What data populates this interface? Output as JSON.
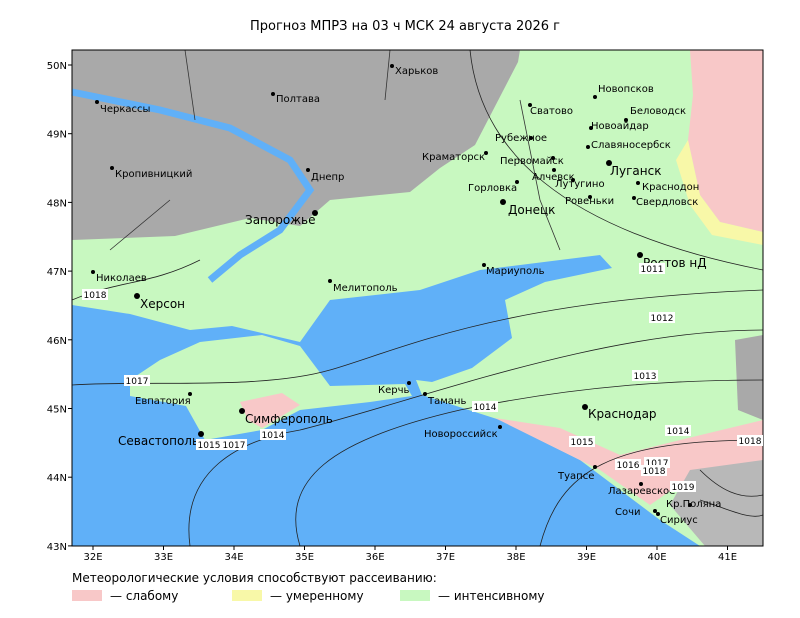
{
  "title": "Прогноз МПРЗ на 03 ч МСК 24 августа 2026 г",
  "latitude_labels": [
    "50N",
    "49N",
    "48N",
    "47N",
    "46N",
    "45N",
    "44N",
    "43N"
  ],
  "longitude_labels": [
    "32E",
    "33E",
    "34E",
    "35E",
    "36E",
    "37E",
    "38E",
    "39E",
    "40E",
    "41E"
  ],
  "cities": [
    "Харьков",
    "Полтава",
    "Черкассы",
    "Кропивницкий",
    "Днепр",
    "Запорожье",
    "Николаев",
    "Херсон",
    "Мелитополь",
    "Мариуполь",
    "Евпатория",
    "Симферополь",
    "Севастополь",
    "Керчь",
    "Тамань",
    "Новороссийск",
    "Краснодар",
    "Туапсе",
    "Лазаревское",
    "Сочи",
    "Сириус",
    "Кр.Поляна",
    "Ростов нД",
    "Донецк",
    "Горловка",
    "Краматорск",
    "Рубежное",
    "Сватово",
    "Первомайск",
    "Алчевск",
    "Лутугино",
    "Ровеньки",
    "Луганск",
    "Славяносербск",
    "Новоайдар",
    "Новопсков",
    "Беловодск",
    "Краснодон",
    "Свердловск"
  ],
  "isobar_labels": [
    "1018",
    "1017",
    "1015",
    "1017",
    "1014",
    "1014",
    "1015",
    "1016",
    "1017",
    "1018",
    "1019",
    "1014",
    "1018",
    "1013",
    "1012",
    "1011"
  ],
  "legend": {
    "caption": "Метеорологические условия способствуют рассеиванию:",
    "items": [
      "— слабому",
      "— умеренному",
      "— интенсивному"
    ]
  }
}
